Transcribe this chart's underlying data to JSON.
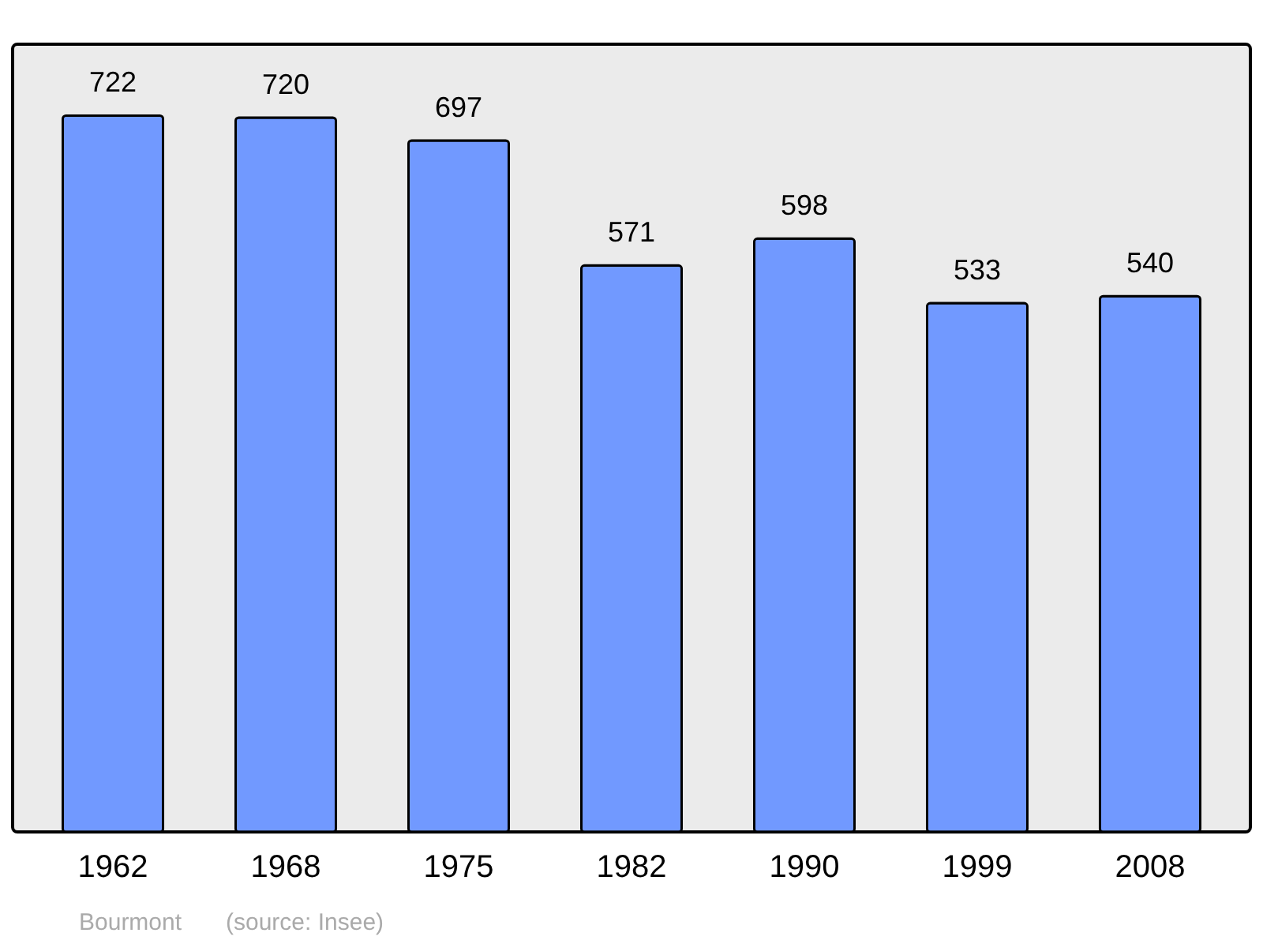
{
  "chart_data": {
    "type": "bar",
    "categories": [
      "1962",
      "1968",
      "1975",
      "1982",
      "1990",
      "1999",
      "2008"
    ],
    "values": [
      722,
      720,
      697,
      571,
      598,
      533,
      540
    ],
    "color": "#7199ff",
    "ylim": [
      0,
      794
    ],
    "data_labels": true,
    "annotations": [
      "Bourmont",
      "(source: Insee)"
    ]
  }
}
